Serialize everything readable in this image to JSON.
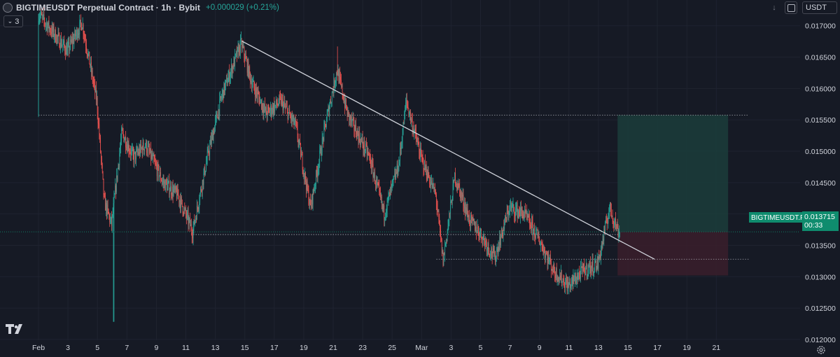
{
  "header": {
    "title": "BIGTIMEUSDT Perpetual Contract · 1h · Bybit",
    "change": "+0.000029 (+0.21%)",
    "collapse_count": "3"
  },
  "toolbar": {
    "currency": "USDT",
    "down_glyph": "↓"
  },
  "price_label": {
    "symbol": "BIGTIMEUSDT.P",
    "price": "0.013715",
    "countdown": "00:33"
  },
  "colors": {
    "background": "#161a25",
    "up": "#26a69a",
    "down": "#ef5350",
    "grid": "#1f2330",
    "axis_text": "#d1d4dc",
    "trendline": "#d1d4dc"
  },
  "chart_data": {
    "type": "candlestick",
    "x_tick_labels": [
      "Feb",
      "3",
      "5",
      "7",
      "9",
      "11",
      "13",
      "15",
      "17",
      "19",
      "21",
      "23",
      "25",
      "Mar",
      "3",
      "5",
      "7",
      "9",
      "11",
      "13",
      "15",
      "17",
      "19",
      "21"
    ],
    "y_ticks": [
      0.017,
      0.0165,
      0.016,
      0.0155,
      0.015,
      0.0145,
      0.014,
      0.0135,
      0.013,
      0.0125,
      0.012
    ],
    "y_tick_labels": [
      "0.017000",
      "0.016500",
      "0.016000",
      "0.015500",
      "0.015000",
      "0.014500",
      "0.014000",
      "0.013500",
      "0.013000",
      "0.012500",
      "0.012000"
    ],
    "ylim": [
      0.01172,
      0.01741
    ],
    "anchors": [
      [
        "Feb 1",
        0.01558
      ],
      [
        "Feb 1",
        0.0172
      ],
      [
        "Feb 3",
        0.0166
      ],
      [
        "Feb 4",
        0.01705
      ],
      [
        "Feb 5",
        0.0158
      ],
      [
        "Feb 5.5",
        0.0142
      ],
      [
        "Feb 6",
        0.01383
      ],
      [
        "Feb 6.7",
        0.0153
      ],
      [
        "Feb 7.5",
        0.0149
      ],
      [
        "Feb 8.3",
        0.0151
      ],
      [
        "Feb 9.5",
        0.0145
      ],
      [
        "Feb 10.5",
        0.0143
      ],
      [
        "Feb 11.5",
        0.01372
      ],
      [
        "Feb 12.5",
        0.0149
      ],
      [
        "Feb 13.5",
        0.0159
      ],
      [
        "Feb 14.8",
        0.01672
      ],
      [
        "Feb 15.5",
        0.0161
      ],
      [
        "Feb 16.5",
        0.0156
      ],
      [
        "Feb 17.5",
        0.0158
      ],
      [
        "Feb 18.5",
        0.0154
      ],
      [
        "Feb 19.5",
        0.0141
      ],
      [
        "Feb 20.5",
        0.0154
      ],
      [
        "Feb 21.3",
        0.0163
      ],
      [
        "Feb 22",
        0.0156
      ],
      [
        "Feb 23.5",
        0.0149
      ],
      [
        "Feb 24.5",
        0.014
      ],
      [
        "Feb 25.5",
        0.0148
      ],
      [
        "Feb 26",
        0.0158
      ],
      [
        "Feb 27",
        0.0149
      ],
      [
        "Feb 28",
        0.0143
      ],
      [
        "Mar 0.5",
        0.01325
      ],
      [
        "Mar 1.3",
        0.0146
      ],
      [
        "Mar 2.3",
        0.0139
      ],
      [
        "Mar 3",
        0.0137
      ],
      [
        "Mar 4",
        0.0133
      ],
      [
        "Mar 5",
        0.0141
      ],
      [
        "Mar 6",
        0.014
      ],
      [
        "Mar 7",
        0.0136
      ],
      [
        "Mar 8",
        0.0131
      ],
      [
        "Mar 9",
        0.01285
      ],
      [
        "Mar 10",
        0.0131
      ],
      [
        "Mar 11",
        0.0132
      ],
      [
        "Mar 11.8",
        0.0141
      ],
      [
        "Mar 12.4",
        0.01371
      ]
    ],
    "extremes": [
      {
        "date": "Feb 6.1",
        "low": 0.01228
      },
      {
        "date": "Feb 14.8",
        "high": 0.01675
      },
      {
        "date": "Feb 21.3",
        "high": 0.01667
      },
      {
        "date": "Feb 26",
        "high": 0.01593
      },
      {
        "date": "Mar 9",
        "low": 0.01272
      }
    ],
    "trendline": {
      "from": {
        "date": "Feb 14.8",
        "price": 0.016755
      },
      "to": {
        "date": "Mar 14.8",
        "price": 0.01328
      }
    },
    "horizontal_levels": [
      {
        "price": 0.015575,
        "from": "Feb 1",
        "to": "Mar 21.2",
        "style": "dotted"
      },
      {
        "price": 0.013672,
        "from": "Feb 11.5",
        "to": "Mar 12.4",
        "style": "dotted"
      },
      {
        "price": 0.013279,
        "from": "Feb 28",
        "to": "Mar 21.2",
        "style": "dotted"
      }
    ],
    "position": {
      "entry": 0.013715,
      "target": 0.015575,
      "stop": 0.01302,
      "from": "Mar 12.3",
      "to": "Mar 19.8",
      "profit_color": "#1b3d3b",
      "loss_color": "#3a1f2b"
    },
    "last_price": 0.013715
  }
}
